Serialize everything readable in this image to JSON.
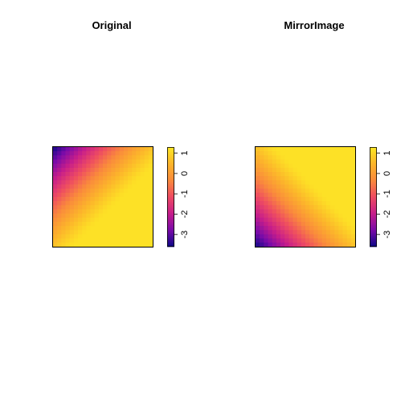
{
  "chart_data": [
    {
      "type": "heatmap",
      "title": "Original",
      "grid_size": 24,
      "value_range": [
        -3.6,
        1.3
      ],
      "field": "v = 1.2 - 4.8 * max(0, 1 - (x + y) / 1.2)^1.25, x,y in [0,1] with origin at top-left",
      "colorbar": {
        "ticks": [
          1,
          0,
          -1,
          -2,
          -3
        ],
        "tick_labels": [
          "1",
          "0",
          "-1",
          "-2",
          "-3"
        ]
      },
      "colormap": [
        "#0d0887",
        "#7a0ba8",
        "#c71e8a",
        "#ee4b62",
        "#fa8a3c",
        "#fcb62a",
        "#fde725"
      ],
      "orientation": "original"
    },
    {
      "type": "heatmap",
      "title": "MirrorImage",
      "grid_size": 24,
      "value_range": [
        -3.6,
        1.3
      ],
      "field": "vertical mirror of Original (rows reversed)",
      "colorbar": {
        "ticks": [
          1,
          0,
          -1,
          -2,
          -3
        ],
        "tick_labels": [
          "1",
          "0",
          "-1",
          "-2",
          "-3"
        ]
      },
      "colormap": [
        "#0d0887",
        "#7a0ba8",
        "#c71e8a",
        "#ee4b62",
        "#fa8a3c",
        "#fcb62a",
        "#fde725"
      ],
      "orientation": "mirrored-vertical"
    }
  ]
}
